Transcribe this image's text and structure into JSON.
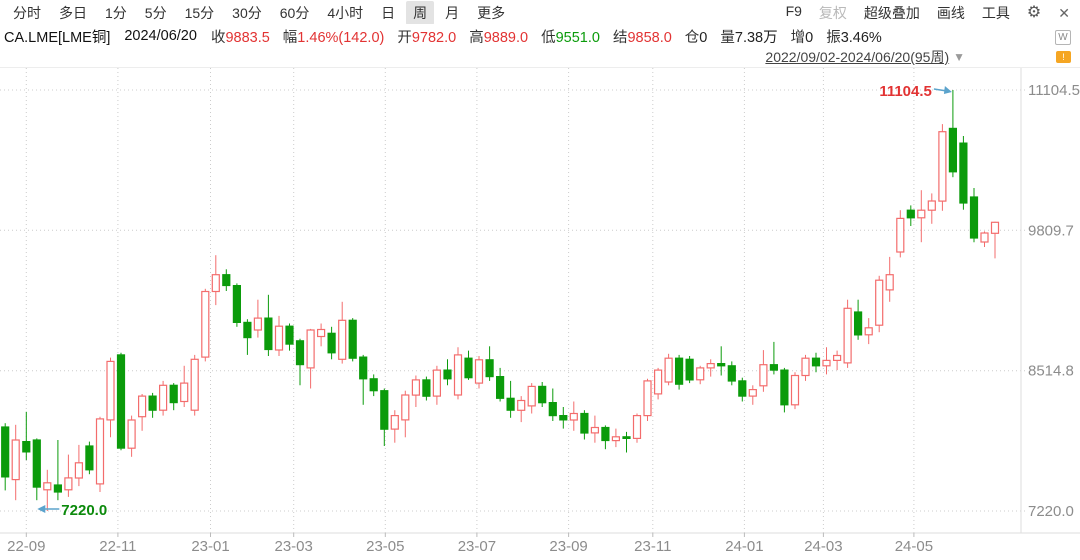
{
  "toolbar": {
    "tabs": [
      "分时",
      "多日",
      "1分",
      "5分",
      "15分",
      "30分",
      "60分",
      "4小时",
      "日",
      "周",
      "月",
      "更多"
    ],
    "selected_tab": "周",
    "right_items": [
      {
        "label": "F9",
        "muted": false
      },
      {
        "label": "复权",
        "muted": true
      },
      {
        "label": "超级叠加",
        "muted": false
      },
      {
        "label": "画线",
        "muted": false
      },
      {
        "label": "工具",
        "muted": false
      }
    ],
    "gear_icon": "⚙",
    "close_icon": "✕"
  },
  "quote_bar": {
    "symbol": "CA.LME[LME铜]",
    "date": "2024/06/20",
    "fields": [
      {
        "label": "收",
        "value": "9883.5",
        "color": "red"
      },
      {
        "label": "幅",
        "value": "1.46%(142.0)",
        "color": "red"
      },
      {
        "label": "开",
        "value": "9782.0",
        "color": "red"
      },
      {
        "label": "高",
        "value": "9889.0",
        "color": "red"
      },
      {
        "label": "低",
        "value": "9551.0",
        "color": "green"
      },
      {
        "label": "结",
        "value": "9858.0",
        "color": "red"
      },
      {
        "label": "仓",
        "value": "0",
        "color": "black"
      },
      {
        "label": "量",
        "value": "7.38万",
        "color": "black"
      },
      {
        "label": "增",
        "value": "0",
        "color": "black"
      },
      {
        "label": "振",
        "value": "3.46%",
        "color": "black"
      }
    ]
  },
  "range_selector": {
    "label": "2022/09/02-2024/06/20(95周)",
    "caret": "▼"
  },
  "widgets": {
    "w_badge": "W",
    "orange_badge": "!"
  },
  "chart_data": {
    "type": "candlestick",
    "period": "weekly",
    "title": "CA.LME weekly candles 2022/09/02 - 2024/06/20 (95 weeks)",
    "y_ticks": [
      11104.5,
      9809.7,
      8514.8,
      7220.0
    ],
    "ylim": [
      7000,
      11250
    ],
    "grid": true,
    "x_ticks": [
      {
        "label": "22-09",
        "week": 2
      },
      {
        "label": "22-11",
        "week": 10.7
      },
      {
        "label": "23-01",
        "week": 19.5
      },
      {
        "label": "23-03",
        "week": 27.4
      },
      {
        "label": "23-05",
        "week": 36.1
      },
      {
        "label": "23-07",
        "week": 44.8
      },
      {
        "label": "23-09",
        "week": 53.5
      },
      {
        "label": "23-11",
        "week": 61.5
      },
      {
        "label": "24-01",
        "week": 70.2
      },
      {
        "label": "24-03",
        "week": 77.7
      },
      {
        "label": "24-05",
        "week": 86.3
      }
    ],
    "annotations": {
      "high": {
        "text": "11104.5",
        "week": 90,
        "price": 11104.5
      },
      "low": {
        "text": "7220.0",
        "week": 4,
        "price": 7220.0
      }
    },
    "colors": {
      "up": "#f36c6c",
      "down": "#0b9b0b",
      "text_up": "#e23333",
      "text_down": "#0c8a0c",
      "arrow": "#5ba3cc",
      "grid": "#cccccc",
      "axis_line": "#dddddd",
      "axis_text": "#8c8c8c"
    },
    "candles": [
      [
        7995,
        8030,
        7410,
        7535
      ],
      [
        7510,
        8015,
        7320,
        7875
      ],
      [
        7860,
        8135,
        7690,
        7765
      ],
      [
        7875,
        7890,
        7320,
        7440
      ],
      [
        7415,
        7600,
        7220,
        7480
      ],
      [
        7460,
        7875,
        7320,
        7395
      ],
      [
        7415,
        7740,
        7350,
        7525
      ],
      [
        7525,
        7830,
        7450,
        7665
      ],
      [
        7820,
        7860,
        7560,
        7600
      ],
      [
        7470,
        8090,
        7395,
        8070
      ],
      [
        8060,
        8635,
        7900,
        8600
      ],
      [
        8660,
        8680,
        7780,
        7800
      ],
      [
        7800,
        8100,
        7720,
        8060
      ],
      [
        8090,
        8300,
        7960,
        8280
      ],
      [
        8280,
        8310,
        8080,
        8150
      ],
      [
        8150,
        8420,
        8100,
        8380
      ],
      [
        8380,
        8400,
        8150,
        8220
      ],
      [
        8230,
        8560,
        8180,
        8400
      ],
      [
        8150,
        8660,
        8100,
        8620
      ],
      [
        8640,
        9270,
        8600,
        9245
      ],
      [
        9245,
        9580,
        9120,
        9400
      ],
      [
        9400,
        9450,
        9250,
        9300
      ],
      [
        9300,
        9320,
        8920,
        8960
      ],
      [
        8960,
        8990,
        8660,
        8820
      ],
      [
        8890,
        9170,
        8820,
        9000
      ],
      [
        9000,
        9215,
        8650,
        8710
      ],
      [
        8705,
        9020,
        8650,
        8925
      ],
      [
        8925,
        8950,
        8700,
        8760
      ],
      [
        8790,
        8810,
        8380,
        8570
      ],
      [
        8540,
        8900,
        8350,
        8890
      ],
      [
        8830,
        8950,
        8740,
        8895
      ],
      [
        8860,
        8920,
        8620,
        8680
      ],
      [
        8620,
        9150,
        8580,
        8980
      ],
      [
        8980,
        9000,
        8600,
        8630
      ],
      [
        8640,
        8660,
        8200,
        8440
      ],
      [
        8440,
        8480,
        8280,
        8330
      ],
      [
        8330,
        8350,
        7820,
        7975
      ],
      [
        7975,
        8150,
        7850,
        8100
      ],
      [
        8060,
        8330,
        7900,
        8290
      ],
      [
        8290,
        8470,
        8180,
        8430
      ],
      [
        8430,
        8460,
        8240,
        8280
      ],
      [
        8280,
        8560,
        8200,
        8520
      ],
      [
        8520,
        8620,
        8380,
        8440
      ],
      [
        8290,
        8730,
        8250,
        8660
      ],
      [
        8630,
        8700,
        8430,
        8450
      ],
      [
        8400,
        8650,
        8350,
        8615
      ],
      [
        8615,
        8740,
        8420,
        8460
      ],
      [
        8460,
        8540,
        8230,
        8260
      ],
      [
        8260,
        8420,
        8080,
        8150
      ],
      [
        8150,
        8280,
        8040,
        8240
      ],
      [
        8190,
        8400,
        8120,
        8370
      ],
      [
        8370,
        8410,
        8180,
        8220
      ],
      [
        8220,
        8350,
        8050,
        8100
      ],
      [
        8100,
        8180,
        7980,
        8060
      ],
      [
        8060,
        8230,
        7960,
        8120
      ],
      [
        8120,
        8150,
        7880,
        7940
      ],
      [
        7940,
        8100,
        7850,
        7990
      ],
      [
        7990,
        8010,
        7790,
        7870
      ],
      [
        7870,
        7980,
        7810,
        7905
      ],
      [
        7905,
        7950,
        7760,
        7890
      ],
      [
        7890,
        8120,
        7850,
        8100
      ],
      [
        8100,
        8440,
        8050,
        8420
      ],
      [
        8300,
        8540,
        8250,
        8520
      ],
      [
        8410,
        8670,
        8380,
        8630
      ],
      [
        8630,
        8660,
        8340,
        8390
      ],
      [
        8620,
        8650,
        8400,
        8430
      ],
      [
        8430,
        8560,
        8390,
        8540
      ],
      [
        8540,
        8620,
        8460,
        8580
      ],
      [
        8580,
        8740,
        8470,
        8560
      ],
      [
        8560,
        8600,
        8380,
        8420
      ],
      [
        8420,
        8450,
        8230,
        8280
      ],
      [
        8280,
        8380,
        8200,
        8340
      ],
      [
        8375,
        8705,
        8320,
        8570
      ],
      [
        8570,
        8780,
        8480,
        8520
      ],
      [
        8520,
        8540,
        8130,
        8200
      ],
      [
        8200,
        8500,
        8160,
        8470
      ],
      [
        8470,
        8660,
        8420,
        8630
      ],
      [
        8630,
        8680,
        8500,
        8560
      ],
      [
        8560,
        8730,
        8480,
        8610
      ],
      [
        8610,
        8700,
        8520,
        8655
      ],
      [
        8586,
        9170,
        8540,
        9090
      ],
      [
        9056,
        9170,
        8800,
        8845
      ],
      [
        8845,
        9000,
        8760,
        8910
      ],
      [
        8935,
        9390,
        8870,
        9350
      ],
      [
        9260,
        9565,
        9150,
        9400
      ],
      [
        9610,
        9995,
        9560,
        9920
      ],
      [
        9995,
        10040,
        9850,
        9925
      ],
      [
        9925,
        10180,
        9700,
        9995
      ],
      [
        9995,
        10150,
        9870,
        10080
      ],
      [
        10080,
        10790,
        9990,
        10720
      ],
      [
        10750,
        11104.5,
        10300,
        10350
      ],
      [
        10615,
        10680,
        10000,
        10062
      ],
      [
        10117,
        10200,
        9700,
        9739
      ],
      [
        9702,
        9800,
        9656,
        9785
      ],
      [
        9782,
        9889,
        9551,
        9883.5
      ]
    ]
  }
}
